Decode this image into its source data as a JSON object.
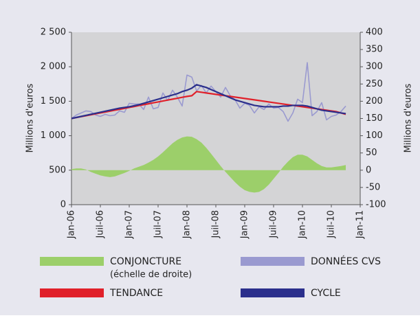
{
  "chart_data": {
    "type": "line",
    "x": [
      "2006-01",
      "2006-02",
      "2006-03",
      "2006-04",
      "2006-05",
      "2006-06",
      "2006-07",
      "2006-08",
      "2006-09",
      "2006-10",
      "2006-11",
      "2006-12",
      "2007-01",
      "2007-02",
      "2007-03",
      "2007-04",
      "2007-05",
      "2007-06",
      "2007-07",
      "2007-08",
      "2007-09",
      "2007-10",
      "2007-11",
      "2007-12",
      "2008-01",
      "2008-02",
      "2008-03",
      "2008-04",
      "2008-05",
      "2008-06",
      "2008-07",
      "2008-08",
      "2008-09",
      "2008-10",
      "2008-11",
      "2008-12",
      "2009-01",
      "2009-02",
      "2009-03",
      "2009-04",
      "2009-05",
      "2009-06",
      "2009-07",
      "2009-08",
      "2009-09",
      "2009-10",
      "2009-11",
      "2009-12",
      "2010-01",
      "2010-02",
      "2010-03",
      "2010-04",
      "2010-05",
      "2010-06",
      "2010-07",
      "2010-08",
      "2010-09",
      "2010-10"
    ],
    "xlim": [
      "2006-01",
      "2011-01"
    ],
    "xticks": [
      {
        "value": "2006-01",
        "label": "Jan-06"
      },
      {
        "value": "2006-07",
        "label": "Juil-06"
      },
      {
        "value": "2007-01",
        "label": "Jan-07"
      },
      {
        "value": "2007-07",
        "label": "Juil-07"
      },
      {
        "value": "2008-01",
        "label": "Jan-08"
      },
      {
        "value": "2008-07",
        "label": "Juil-08"
      },
      {
        "value": "2009-01",
        "label": "Jan-09"
      },
      {
        "value": "2009-07",
        "label": "Juil-09"
      },
      {
        "value": "2010-01",
        "label": "Jan-10"
      },
      {
        "value": "2010-07",
        "label": "Juil-10"
      },
      {
        "value": "2011-01",
        "label": "Jan-11"
      }
    ],
    "ylabel": "Millions d'euros",
    "y2label": "Millions d'euros",
    "ylim": [
      0,
      2500
    ],
    "yticks": [
      0,
      500,
      {
        "value": 1000,
        "label": "1 000"
      },
      {
        "value": 1500,
        "label": "1 500"
      },
      {
        "value": 2000,
        "label": "2 000"
      },
      {
        "value": 2500,
        "label": "2 500"
      }
    ],
    "y2lim": [
      -100,
      400
    ],
    "y2ticks": [
      -100,
      -50,
      0,
      50,
      100,
      150,
      200,
      250,
      300,
      350,
      400
    ],
    "series": [
      {
        "name": "CONJONCTURE",
        "note": "(échelle de droite)",
        "type": "area",
        "axis": "y2",
        "color": "#9ccf6a",
        "values": [
          3,
          5,
          5,
          2,
          -5,
          -10,
          -15,
          -18,
          -20,
          -18,
          -13,
          -8,
          -2,
          5,
          10,
          15,
          22,
          30,
          40,
          52,
          65,
          78,
          88,
          95,
          98,
          97,
          90,
          80,
          65,
          48,
          30,
          12,
          -5,
          -20,
          -35,
          -48,
          -58,
          -63,
          -65,
          -63,
          -55,
          -42,
          -25,
          -8,
          10,
          25,
          38,
          45,
          45,
          40,
          30,
          20,
          12,
          8,
          8,
          10,
          12,
          15
        ]
      },
      {
        "name": "DONNÉES CVS",
        "type": "line",
        "color": "#9a9ad0",
        "values": [
          1250,
          1300,
          1330,
          1360,
          1350,
          1300,
          1280,
          1310,
          1290,
          1300,
          1360,
          1340,
          1470,
          1460,
          1460,
          1380,
          1560,
          1390,
          1410,
          1620,
          1510,
          1660,
          1560,
          1430,
          1880,
          1850,
          1650,
          1730,
          1620,
          1720,
          1640,
          1560,
          1700,
          1580,
          1520,
          1400,
          1470,
          1440,
          1330,
          1420,
          1380,
          1460,
          1400,
          1410,
          1350,
          1210,
          1330,
          1530,
          1480,
          2060,
          1290,
          1350,
          1480,
          1230,
          1280,
          1300,
          1350,
          1430
        ]
      },
      {
        "name": "TENDANCE",
        "type": "line",
        "color": "#e0202a",
        "values": [
          1250,
          1263,
          1277,
          1290,
          1303,
          1317,
          1330,
          1343,
          1357,
          1370,
          1383,
          1397,
          1410,
          1423,
          1437,
          1450,
          1463,
          1477,
          1490,
          1503,
          1517,
          1530,
          1543,
          1557,
          1570,
          1580,
          1640,
          1630,
          1620,
          1610,
          1600,
          1590,
          1580,
          1570,
          1560,
          1550,
          1540,
          1530,
          1520,
          1510,
          1500,
          1490,
          1480,
          1470,
          1460,
          1450,
          1440,
          1430,
          1420,
          1410,
          1400,
          1390,
          1380,
          1370,
          1360,
          1350,
          1330,
          1310
        ]
      },
      {
        "name": "CYCLE",
        "type": "line",
        "color": "#2b2f8c",
        "values": [
          1250,
          1265,
          1280,
          1295,
          1310,
          1325,
          1340,
          1355,
          1370,
          1385,
          1400,
          1410,
          1420,
          1435,
          1450,
          1470,
          1490,
          1510,
          1530,
          1550,
          1570,
          1590,
          1610,
          1640,
          1660,
          1690,
          1740,
          1720,
          1700,
          1670,
          1640,
          1610,
          1580,
          1550,
          1520,
          1500,
          1480,
          1460,
          1440,
          1430,
          1420,
          1420,
          1420,
          1420,
          1430,
          1430,
          1440,
          1440,
          1440,
          1430,
          1410,
          1390,
          1370,
          1360,
          1350,
          1340,
          1330,
          1320
        ]
      }
    ]
  }
}
